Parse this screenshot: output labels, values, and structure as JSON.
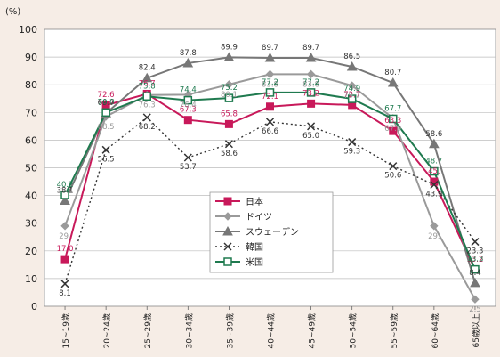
{
  "chart_data": {
    "type": "line",
    "unit_label": "(%)",
    "title": "",
    "xlabel": "",
    "ylabel": "",
    "ylim": [
      0,
      100
    ],
    "y_ticks": [
      0,
      10,
      20,
      30,
      40,
      50,
      60,
      70,
      80,
      90,
      100
    ],
    "grid": true,
    "legend_position": "lower-center",
    "categories": [
      "15~19歳",
      "20~24歳",
      "25~29歳",
      "30~34歳",
      "35~39歳",
      "40~44歳",
      "45~49歳",
      "50~54歳",
      "55~59歳",
      "60~64歳",
      "65歳以上"
    ],
    "series": [
      {
        "name": "日本",
        "color": "#c8195a",
        "dash": "solid",
        "marker": "square-filled",
        "values": [
          17.0,
          72.6,
          76.7,
          67.3,
          65.8,
          72.1,
          73.2,
          72.7,
          63.3,
          45.0,
          13.2
        ],
        "labels": [
          "17.0",
          "72.6",
          "76.7",
          "67.3",
          "65.8",
          "72.1",
          "73.2",
          "72.7",
          "63.3",
          "45.",
          "13.2"
        ]
      },
      {
        "name": "ドイツ",
        "color": "#9a9a9a",
        "dash": "solid",
        "marker": "diamond",
        "values": [
          29.0,
          68.5,
          76.3,
          76.4,
          80.1,
          83.8,
          83.8,
          79.7,
          67.9,
          29.0,
          2.5
        ],
        "labels": [
          "29.",
          "68.5",
          "76.3",
          "76.4",
          "80.1",
          "83.8",
          "83.8",
          "79.7",
          "67.9",
          "29.",
          "2.5"
        ]
      },
      {
        "name": "スウェーデン",
        "color": "#777777",
        "dash": "solid",
        "marker": "triangle",
        "values": [
          38.1,
          69.7,
          82.4,
          87.8,
          89.9,
          89.7,
          89.7,
          86.5,
          80.7,
          58.6,
          8.4
        ],
        "labels": [
          "38.1",
          "69.7",
          "82.4",
          "87.8",
          "89.9",
          "89.7",
          "89.7",
          "86.5",
          "80.7",
          "58.6",
          "8.4"
        ]
      },
      {
        "name": "韓国",
        "color": "#333333",
        "dash": "dotted",
        "marker": "x",
        "values": [
          8.1,
          56.5,
          68.2,
          53.7,
          58.6,
          66.6,
          65.0,
          59.3,
          50.6,
          43.9,
          23.3
        ],
        "labels": [
          "8.1",
          "56.5",
          "68.2",
          "53.7",
          "58.6",
          "66.6",
          "65.0",
          "59.3",
          "50.6",
          "43.9",
          "23.3"
        ]
      },
      {
        "name": "米国",
        "color": "#1f7a4f",
        "dash": "solid",
        "marker": "square-open",
        "values": [
          40.2,
          70.0,
          75.8,
          74.4,
          75.2,
          77.2,
          77.2,
          74.9,
          67.7,
          48.7,
          13.3
        ],
        "labels": [
          "40.2",
          "70.0",
          "75.8",
          "74.4",
          "75.2",
          "77.2",
          "77.2",
          "74.9",
          "67.7",
          "48.7",
          "13.3"
        ]
      }
    ]
  }
}
